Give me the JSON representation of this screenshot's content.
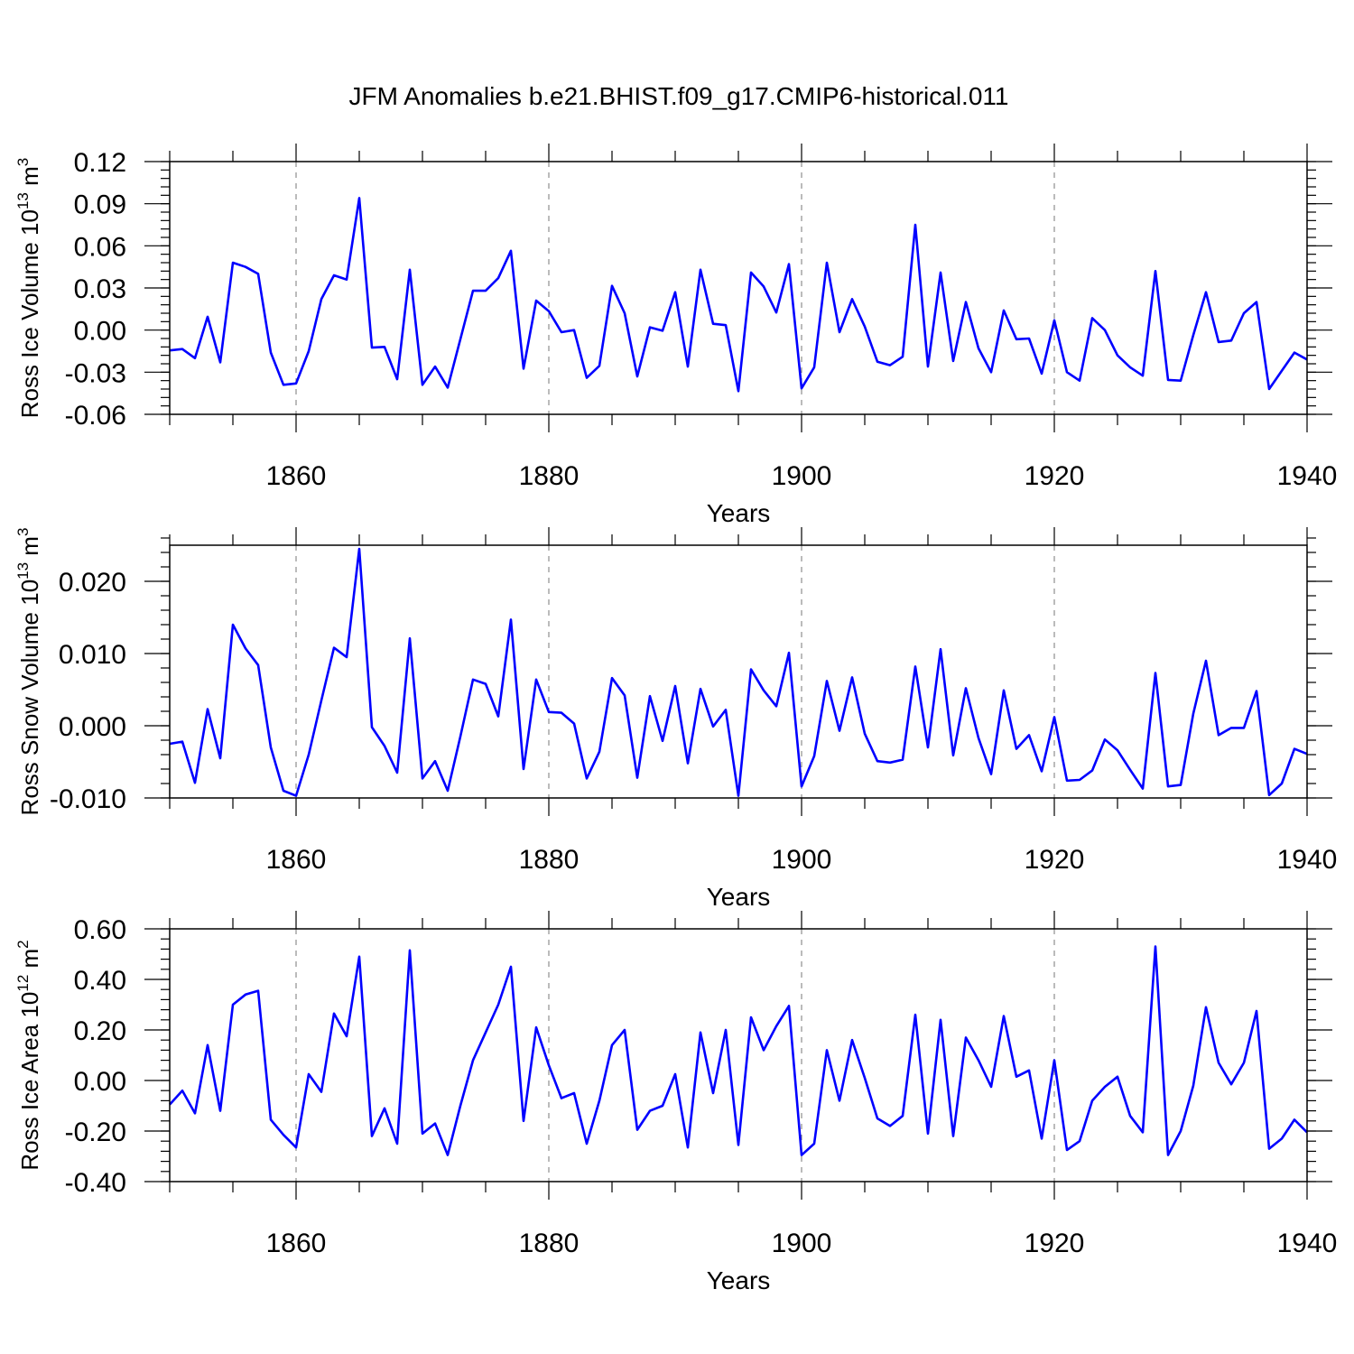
{
  "chart_data": [
    {
      "type": "line",
      "title": "JFM Anomalies b.e21.BHIST.f09_g17.CMIP6-historical.011",
      "ylabel": "Ross Ice Volume 10",
      "ylabel_exp": "13",
      "ylabel_unit": "m",
      "ylabel_unit_exp": "3",
      "xlabel": "Years",
      "xlim": [
        1850,
        1940
      ],
      "ylim": [
        -0.06,
        0.12
      ],
      "yticks": [
        -0.06,
        -0.03,
        0.0,
        0.03,
        0.06,
        0.09,
        0.12
      ],
      "ytick_labels": [
        "-0.06",
        "-0.03",
        "0.00",
        "0.03",
        "0.06",
        "0.09",
        "0.12"
      ],
      "yminor_step": 0.006,
      "xticks": [
        1860,
        1880,
        1900,
        1920,
        1940
      ],
      "xtick_labels": [
        "1860",
        "1880",
        "1900",
        "1920",
        "1940"
      ],
      "grid": "dashed vertical at major x ticks",
      "series": [
        {
          "name": "Ross Ice Volume",
          "color": "#0000ff",
          "x": [
            1850,
            1851,
            1852,
            1853,
            1854,
            1855,
            1856,
            1857,
            1858,
            1859,
            1860,
            1861,
            1862,
            1863,
            1864,
            1865,
            1866,
            1867,
            1868,
            1869,
            1870,
            1871,
            1872,
            1873,
            1874,
            1875,
            1876,
            1877,
            1878,
            1879,
            1880,
            1881,
            1882,
            1883,
            1884,
            1885,
            1886,
            1887,
            1888,
            1889,
            1890,
            1891,
            1892,
            1893,
            1894,
            1895,
            1896,
            1897,
            1898,
            1899,
            1900,
            1901,
            1902,
            1903,
            1904,
            1905,
            1906,
            1907,
            1908,
            1909,
            1910,
            1911,
            1912,
            1913,
            1914,
            1915,
            1916,
            1917,
            1918,
            1919,
            1920,
            1921,
            1922,
            1923,
            1924,
            1925,
            1926,
            1927,
            1928,
            1929,
            1930,
            1931,
            1932,
            1933,
            1934,
            1935,
            1936,
            1937,
            1938,
            1939,
            1940
          ],
          "values": [
            -0.0145,
            -0.0135,
            -0.02,
            0.0095,
            -0.023,
            0.048,
            0.045,
            0.04,
            -0.016,
            -0.039,
            -0.038,
            -0.015,
            0.022,
            0.039,
            0.036,
            0.094,
            -0.0125,
            -0.012,
            -0.035,
            0.043,
            -0.039,
            -0.026,
            -0.041,
            -0.0065,
            0.028,
            0.028,
            0.037,
            0.0565,
            -0.0275,
            0.021,
            0.0135,
            -0.0015,
            0.0,
            -0.034,
            -0.0255,
            0.0315,
            0.012,
            -0.033,
            0.002,
            -0.0005,
            0.027,
            -0.026,
            0.043,
            0.0045,
            0.0035,
            -0.0435,
            0.041,
            0.031,
            0.0125,
            0.047,
            -0.0415,
            -0.0265,
            0.048,
            -0.0015,
            0.022,
            0.0025,
            -0.0225,
            -0.025,
            -0.019,
            0.075,
            -0.026,
            0.041,
            -0.022,
            0.02,
            -0.013,
            -0.03,
            0.014,
            -0.0065,
            -0.006,
            -0.031,
            0.007,
            -0.03,
            -0.036,
            0.0085,
            0.0,
            -0.018,
            -0.0265,
            -0.0325,
            0.042,
            -0.0355,
            -0.036,
            -0.0035,
            0.027,
            -0.0085,
            -0.0075,
            0.012,
            0.02,
            -0.042,
            -0.029,
            -0.016,
            -0.021
          ]
        }
      ]
    },
    {
      "type": "line",
      "ylabel": "Ross Snow Volume 10",
      "ylabel_exp": "13",
      "ylabel_unit": "m",
      "ylabel_unit_exp": "3",
      "xlabel": "Years",
      "xlim": [
        1850,
        1940
      ],
      "ylim": [
        -0.01,
        0.025
      ],
      "yticks": [
        -0.01,
        0.0,
        0.01,
        0.02
      ],
      "ytick_labels": [
        "-0.010",
        "0.000",
        "0.010",
        "0.020"
      ],
      "yminor_step": 0.002,
      "xticks": [
        1860,
        1880,
        1900,
        1920,
        1940
      ],
      "xtick_labels": [
        "1860",
        "1880",
        "1900",
        "1920",
        "1940"
      ],
      "grid": "dashed vertical at major x ticks",
      "series": [
        {
          "name": "Ross Snow Volume",
          "color": "#0000ff",
          "x": [
            1850,
            1851,
            1852,
            1853,
            1854,
            1855,
            1856,
            1857,
            1858,
            1859,
            1860,
            1861,
            1862,
            1863,
            1864,
            1865,
            1866,
            1867,
            1868,
            1869,
            1870,
            1871,
            1872,
            1873,
            1874,
            1875,
            1876,
            1877,
            1878,
            1879,
            1880,
            1881,
            1882,
            1883,
            1884,
            1885,
            1886,
            1887,
            1888,
            1889,
            1890,
            1891,
            1892,
            1893,
            1894,
            1895,
            1896,
            1897,
            1898,
            1899,
            1900,
            1901,
            1902,
            1903,
            1904,
            1905,
            1906,
            1907,
            1908,
            1909,
            1910,
            1911,
            1912,
            1913,
            1914,
            1915,
            1916,
            1917,
            1918,
            1919,
            1920,
            1921,
            1922,
            1923,
            1924,
            1925,
            1926,
            1927,
            1928,
            1929,
            1930,
            1931,
            1932,
            1933,
            1934,
            1935,
            1936,
            1937,
            1938,
            1939,
            1940
          ],
          "values": [
            -0.0025,
            -0.0022,
            -0.0079,
            0.0023,
            -0.0045,
            0.014,
            0.0107,
            0.0084,
            -0.003,
            -0.009,
            -0.0097,
            -0.004,
            0.0035,
            0.0108,
            0.0095,
            0.0245,
            -0.0002,
            -0.0028,
            -0.0065,
            0.0121,
            -0.0073,
            -0.0049,
            -0.009,
            -0.0015,
            0.0064,
            0.0058,
            0.0013,
            0.0147,
            -0.006,
            0.0064,
            0.0019,
            0.0018,
            0.0003,
            -0.0073,
            -0.0036,
            0.0066,
            0.0042,
            -0.0072,
            0.0041,
            -0.0021,
            0.0055,
            -0.0052,
            0.0051,
            -0.0001,
            0.0022,
            -0.0097,
            0.0078,
            0.0049,
            0.0027,
            0.0101,
            -0.0084,
            -0.0042,
            0.0062,
            -0.0007,
            0.0067,
            -0.0011,
            -0.0049,
            -0.0051,
            -0.0047,
            0.0082,
            -0.003,
            0.0106,
            -0.0041,
            0.0052,
            -0.0017,
            -0.0067,
            0.0049,
            -0.0032,
            -0.0013,
            -0.0063,
            0.0012,
            -0.0076,
            -0.0075,
            -0.0062,
            -0.0019,
            -0.0034,
            -0.0061,
            -0.0087,
            0.0073,
            -0.0084,
            -0.0082,
            0.0017,
            0.009,
            -0.0013,
            -0.0003,
            -0.0003,
            0.0048,
            -0.0096,
            -0.008,
            -0.0032,
            -0.0039
          ]
        }
      ]
    },
    {
      "type": "line",
      "ylabel": "Ross Ice Area 10",
      "ylabel_exp": "12",
      "ylabel_unit": "m",
      "ylabel_unit_exp": "2",
      "xlabel": "Years",
      "xlim": [
        1850,
        1940
      ],
      "ylim": [
        -0.4,
        0.6
      ],
      "yticks": [
        -0.4,
        -0.2,
        0.0,
        0.2,
        0.4,
        0.6
      ],
      "ytick_labels": [
        "-0.40",
        "-0.20",
        "0.00",
        "0.20",
        "0.40",
        "0.60"
      ],
      "yminor_step": 0.04,
      "xticks": [
        1860,
        1880,
        1900,
        1920,
        1940
      ],
      "xtick_labels": [
        "1860",
        "1880",
        "1900",
        "1920",
        "1940"
      ],
      "grid": "dashed vertical at major x ticks",
      "series": [
        {
          "name": "Ross Ice Area",
          "color": "#0000ff",
          "x": [
            1850,
            1851,
            1852,
            1853,
            1854,
            1855,
            1856,
            1857,
            1858,
            1859,
            1860,
            1861,
            1862,
            1863,
            1864,
            1865,
            1866,
            1867,
            1868,
            1869,
            1870,
            1871,
            1872,
            1873,
            1874,
            1875,
            1876,
            1877,
            1878,
            1879,
            1880,
            1881,
            1882,
            1883,
            1884,
            1885,
            1886,
            1887,
            1888,
            1889,
            1890,
            1891,
            1892,
            1893,
            1894,
            1895,
            1896,
            1897,
            1898,
            1899,
            1900,
            1901,
            1902,
            1903,
            1904,
            1905,
            1906,
            1907,
            1908,
            1909,
            1910,
            1911,
            1912,
            1913,
            1914,
            1915,
            1916,
            1917,
            1918,
            1919,
            1920,
            1921,
            1922,
            1923,
            1924,
            1925,
            1926,
            1927,
            1928,
            1929,
            1930,
            1931,
            1932,
            1933,
            1934,
            1935,
            1936,
            1937,
            1938,
            1939,
            1940
          ],
          "values": [
            -0.095,
            -0.04,
            -0.13,
            0.14,
            -0.12,
            0.3,
            0.34,
            0.355,
            -0.155,
            -0.215,
            -0.265,
            0.025,
            -0.045,
            0.265,
            0.175,
            0.49,
            -0.22,
            -0.11,
            -0.25,
            0.515,
            -0.21,
            -0.17,
            -0.295,
            -0.1,
            0.08,
            0.19,
            0.3,
            0.45,
            -0.16,
            0.21,
            0.06,
            -0.07,
            -0.05,
            -0.25,
            -0.08,
            0.14,
            0.2,
            -0.195,
            -0.12,
            -0.1,
            0.025,
            -0.265,
            0.19,
            -0.05,
            0.2,
            -0.255,
            0.25,
            0.12,
            0.215,
            0.295,
            -0.295,
            -0.25,
            0.12,
            -0.08,
            0.16,
            0.01,
            -0.15,
            -0.18,
            -0.14,
            0.26,
            -0.21,
            0.24,
            -0.22,
            0.17,
            0.08,
            -0.025,
            0.255,
            0.015,
            0.04,
            -0.23,
            0.08,
            -0.275,
            -0.24,
            -0.08,
            -0.025,
            0.015,
            -0.14,
            -0.205,
            0.53,
            -0.295,
            -0.2,
            -0.02,
            0.29,
            0.07,
            -0.015,
            0.07,
            0.275,
            -0.27,
            -0.23,
            -0.155,
            -0.205
          ]
        }
      ]
    }
  ]
}
